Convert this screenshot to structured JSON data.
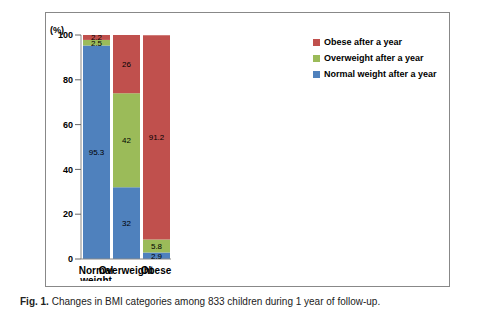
{
  "chart_data": {
    "type": "bar",
    "title": "Fig. 1. Changes in BMI categories among 833 children during 1 year of follow-up.",
    "ylabel": "(%)",
    "categories": [
      "Normal weight",
      "Overweight",
      "Obese"
    ],
    "series": [
      {
        "name": "Normal weight after a year",
        "color": "#4f81bd",
        "values": [
          95.3,
          32,
          2.9
        ]
      },
      {
        "name": "Overweight after a year",
        "color": "#9bbb59",
        "values": [
          2.5,
          42,
          5.8
        ]
      },
      {
        "name": "Obese after a year",
        "color": "#c0504d",
        "values": [
          2.2,
          26,
          91.2
        ]
      }
    ],
    "ylim": [
      0,
      100
    ],
    "yticks": [
      0,
      20,
      40,
      60,
      80,
      100
    ],
    "stacked": true,
    "data_labels": true,
    "legend": "upper right",
    "grid": false
  }
}
